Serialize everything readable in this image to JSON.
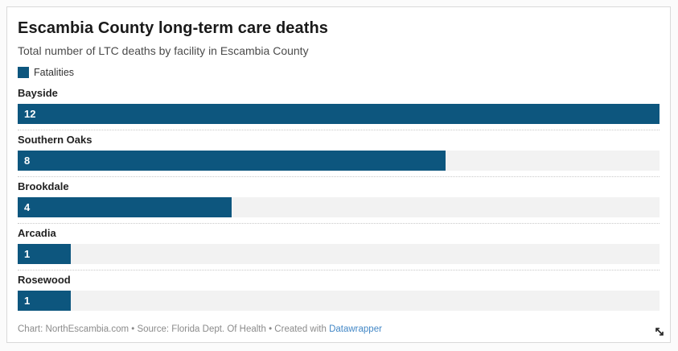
{
  "header": {
    "title": "Escambia County long-term care deaths",
    "subtitle": "Total number of LTC deaths by facility in Escambia County"
  },
  "legend": {
    "label": "Fatalities"
  },
  "chart_data": {
    "type": "bar",
    "orientation": "horizontal",
    "title": "Escambia County long-term care deaths",
    "subtitle": "Total number of LTC deaths by facility in Escambia County",
    "series_name": "Fatalities",
    "categories": [
      "Bayside",
      "Southern Oaks",
      "Brookdale",
      "Arcadia",
      "Rosewood"
    ],
    "values": [
      12,
      8,
      4,
      1,
      1
    ],
    "xlabel": "",
    "ylabel": "",
    "xlim": [
      0,
      12
    ],
    "grid": false,
    "value_labels": "inside-bar-left",
    "legend_position": "top-left"
  },
  "footer": {
    "credit_text": "Chart: NorthEscambia.com • Source: Florida Dept. Of Health • Created with ",
    "link_label": "Datawrapper"
  },
  "icons": {
    "resize_icon": "diagonal-resize-arrow"
  },
  "colors": {
    "bar": "#0d567e",
    "bar_track": "#f2f2f2",
    "value_label": "#ffffff",
    "link": "#4287c6"
  }
}
